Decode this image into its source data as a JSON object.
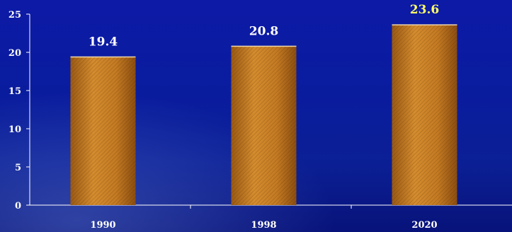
{
  "chart_data": {
    "type": "bar",
    "categories": [
      "1990",
      "1998",
      "2020"
    ],
    "values": [
      19.4,
      20.8,
      23.6
    ],
    "data_labels": [
      "19.4",
      "20.8",
      "23.6"
    ],
    "label_colors": [
      "#ffffff",
      "#ffffff",
      "#ffff66"
    ],
    "title": "",
    "xlabel": "",
    "ylabel": "",
    "ylim": [
      0,
      25
    ],
    "yticks": [
      "0",
      "5",
      "10",
      "15",
      "20",
      "25"
    ],
    "grid": false,
    "bar_color": "#c9822a",
    "bar_color_dark": "#8a4f12",
    "axis_color": "#ffffff",
    "text_color": "#ffffff",
    "background_color": "#0a1a9a"
  }
}
